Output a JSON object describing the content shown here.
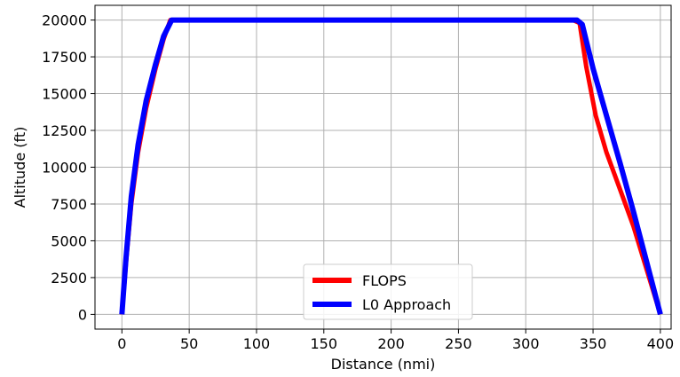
{
  "chart_data": {
    "type": "line",
    "xlabel": "Distance (nmi)",
    "ylabel": "Altitude (ft)",
    "xlim": [
      -20,
      408
    ],
    "ylim": [
      -1000,
      21000
    ],
    "xticks": [
      0,
      50,
      100,
      150,
      200,
      250,
      300,
      350,
      400
    ],
    "yticks": [
      0,
      2500,
      5000,
      7500,
      10000,
      12500,
      15000,
      17500,
      20000
    ],
    "grid": true,
    "legend_position": "bottom-center",
    "series": [
      {
        "name": "FLOPS",
        "color": "#ff0000",
        "x": [
          0,
          3,
          7,
          12,
          18,
          25,
          31,
          36,
          40,
          200,
          335,
          340,
          345,
          352,
          360,
          370,
          380,
          390,
          400
        ],
        "y": [
          0,
          3500,
          7500,
          11000,
          14000,
          16700,
          18700,
          20000,
          20000,
          20000,
          20000,
          19800,
          16800,
          13500,
          11000,
          8500,
          6000,
          3000,
          0
        ]
      },
      {
        "name": "L0 Approach",
        "color": "#0000ff",
        "x": [
          0,
          3,
          7,
          12,
          18,
          25,
          31,
          37,
          40,
          200,
          338,
          342,
          350,
          360,
          370,
          380,
          390,
          400
        ],
        "y": [
          0,
          3800,
          8000,
          11500,
          14500,
          17000,
          18900,
          20000,
          20000,
          20000,
          20000,
          19700,
          16700,
          13500,
          10300,
          7000,
          3500,
          0
        ]
      }
    ]
  }
}
